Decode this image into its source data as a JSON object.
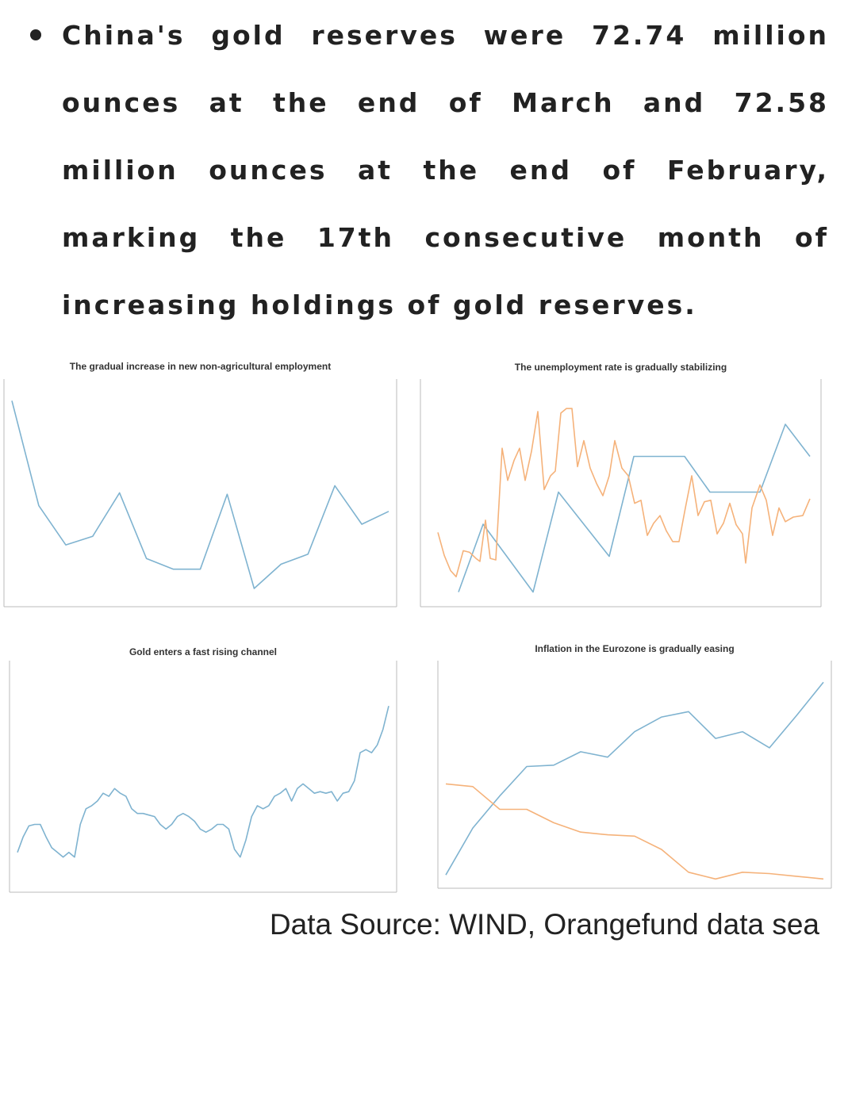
{
  "text": {
    "paragraph": "China's gold reserves were 72.74 million ounces at the end of March and 72.58 million ounces at the end of February, marking the 17th consecutive month of increasing holdings of gold reserves.",
    "source": "Data Source: WIND, Orangefund data sea"
  },
  "chart_data": [
    {
      "type": "line",
      "title": "The gradual increase in new non-agricultural employment",
      "color": "#7fb3d0",
      "ylim": [
        0,
        300
      ],
      "values": [
        283,
        136,
        81,
        93,
        154,
        62,
        47,
        47,
        152,
        20,
        54,
        68,
        164,
        110,
        128
      ]
    },
    {
      "type": "line",
      "title": "The unemployment rate is gradually stabilizing",
      "xlim": [
        0,
        485
      ],
      "ylim": [
        3.4,
        4.0
      ],
      "y2lim": [
        140000,
        280000
      ],
      "series": [
        {
          "color": "#7fb3d0",
          "x": [
            38,
            69,
            132,
            164,
            228,
            259,
            323,
            355,
            418,
            450,
            481
          ],
          "values": [
            3.43,
            3.62,
            3.43,
            3.71,
            3.53,
            3.81,
            3.81,
            3.71,
            3.71,
            3.9,
            3.81
          ]
        },
        {
          "color": "#f5b27a",
          "axis": "y2",
          "x": [
            12,
            20,
            28,
            35,
            44,
            52,
            60,
            65,
            72,
            78,
            85,
            93,
            100,
            108,
            115,
            122,
            130,
            138,
            146,
            154,
            160,
            167,
            174,
            181,
            188,
            196,
            204,
            212,
            220,
            228,
            235,
            244,
            252,
            260,
            268,
            276,
            284,
            292,
            300,
            308,
            316,
            324,
            332,
            340,
            348,
            356,
            364,
            372,
            380,
            388,
            396,
            400,
            408,
            418,
            426,
            434,
            442,
            450,
            460,
            472,
            481
          ],
          "values": [
            186000,
            171000,
            161000,
            157000,
            174000,
            173000,
            169000,
            167000,
            194000,
            169000,
            168000,
            241000,
            220000,
            233000,
            241000,
            220000,
            239000,
            265000,
            214000,
            223000,
            226000,
            264000,
            267000,
            267000,
            229000,
            246000,
            228000,
            218000,
            210000,
            223000,
            246000,
            228000,
            223000,
            205000,
            207000,
            184000,
            192000,
            197000,
            187000,
            180000,
            180000,
            202000,
            223000,
            197000,
            206000,
            207000,
            185000,
            192000,
            205000,
            191000,
            185000,
            166000,
            202000,
            217000,
            207000,
            184000,
            202000,
            193000,
            196000,
            197000,
            208000
          ]
        }
      ]
    },
    {
      "type": "line",
      "title": "Gold enters a fast rising channel",
      "color": "#7fb3d0",
      "ylim": [
        1700,
        2400
      ],
      "values": [
        1815,
        1865,
        1900,
        1905,
        1905,
        1865,
        1830,
        1815,
        1800,
        1815,
        1800,
        1905,
        1955,
        1965,
        1980,
        2005,
        1995,
        2020,
        2005,
        1995,
        1955,
        1940,
        1940,
        1935,
        1930,
        1905,
        1890,
        1905,
        1930,
        1940,
        1930,
        1915,
        1890,
        1880,
        1890,
        1905,
        1905,
        1890,
        1825,
        1800,
        1855,
        1930,
        1965,
        1955,
        1965,
        1995,
        2005,
        2020,
        1980,
        2020,
        2035,
        2020,
        2005,
        2010,
        2005,
        2010,
        1980,
        2005,
        2010,
        2045,
        2135,
        2145,
        2135,
        2160,
        2210,
        2285
      ]
    },
    {
      "type": "line",
      "title": "Inflation in the Eurozone is gradually easing",
      "ylim": [
        120,
        136
      ],
      "y2lim": [
        0,
        16
      ],
      "series": [
        {
          "color": "#7fb3d0",
          "values": [
            120.7,
            124.2,
            126.6,
            128.8,
            128.9,
            129.9,
            129.5,
            131.4,
            132.5,
            132.9,
            130.9,
            131.4,
            130.2,
            132.6,
            135.1
          ]
        },
        {
          "color": "#f5b27a",
          "axis": "y2",
          "values": [
            7.5,
            7.3,
            5.6,
            5.6,
            4.6,
            3.9,
            3.7,
            3.6,
            2.6,
            0.9,
            0.4,
            0.9,
            0.8,
            0.6,
            0.4
          ]
        }
      ]
    }
  ]
}
